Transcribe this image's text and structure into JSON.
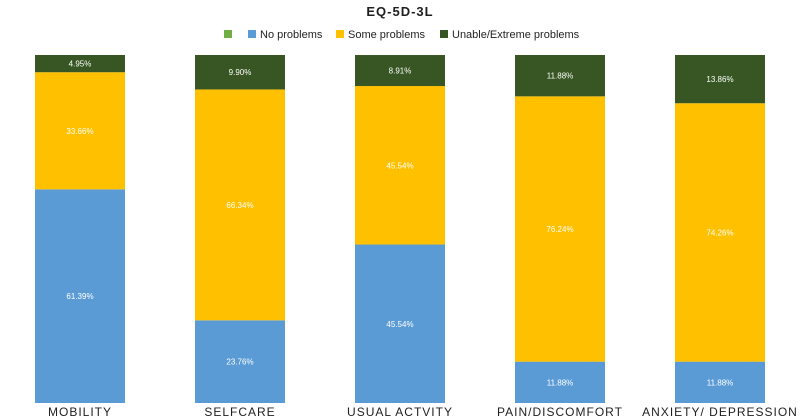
{
  "chart_data": {
    "type": "bar",
    "stacked": true,
    "percent": true,
    "title": "EQ-5D-3L",
    "xlabel": "",
    "ylabel": "",
    "ylim": [
      0,
      100
    ],
    "grid": false,
    "legend_position": "top",
    "legend_extra_marker_color": "#70ad47",
    "categories": [
      "MOBILITY",
      "SELFCARE",
      "USUAL ACTVITY",
      "PAIN/DISCOMFORT",
      "ANXIETY/ DEPRESSION"
    ],
    "series": [
      {
        "name": "No problems",
        "color": "#5b9bd5",
        "values": [
          61.39,
          23.76,
          45.54,
          11.88,
          11.88
        ],
        "labels": [
          "61.39%",
          "23.76%",
          "45.54%",
          "11.88%",
          "11.88%"
        ]
      },
      {
        "name": "Some problems",
        "color": "#ffc000",
        "values": [
          33.66,
          66.34,
          45.54,
          76.24,
          74.26
        ],
        "labels": [
          "33.66%",
          "66.34%",
          "45.54%",
          "76.24%",
          "74.26%"
        ]
      },
      {
        "name": "Unable/Extreme problems",
        "color": "#375623",
        "values": [
          4.95,
          9.9,
          8.91,
          11.88,
          13.86
        ],
        "labels": [
          "4.95%",
          "9.90%",
          "8.91%",
          "11.88%",
          "13.86%"
        ]
      }
    ]
  }
}
